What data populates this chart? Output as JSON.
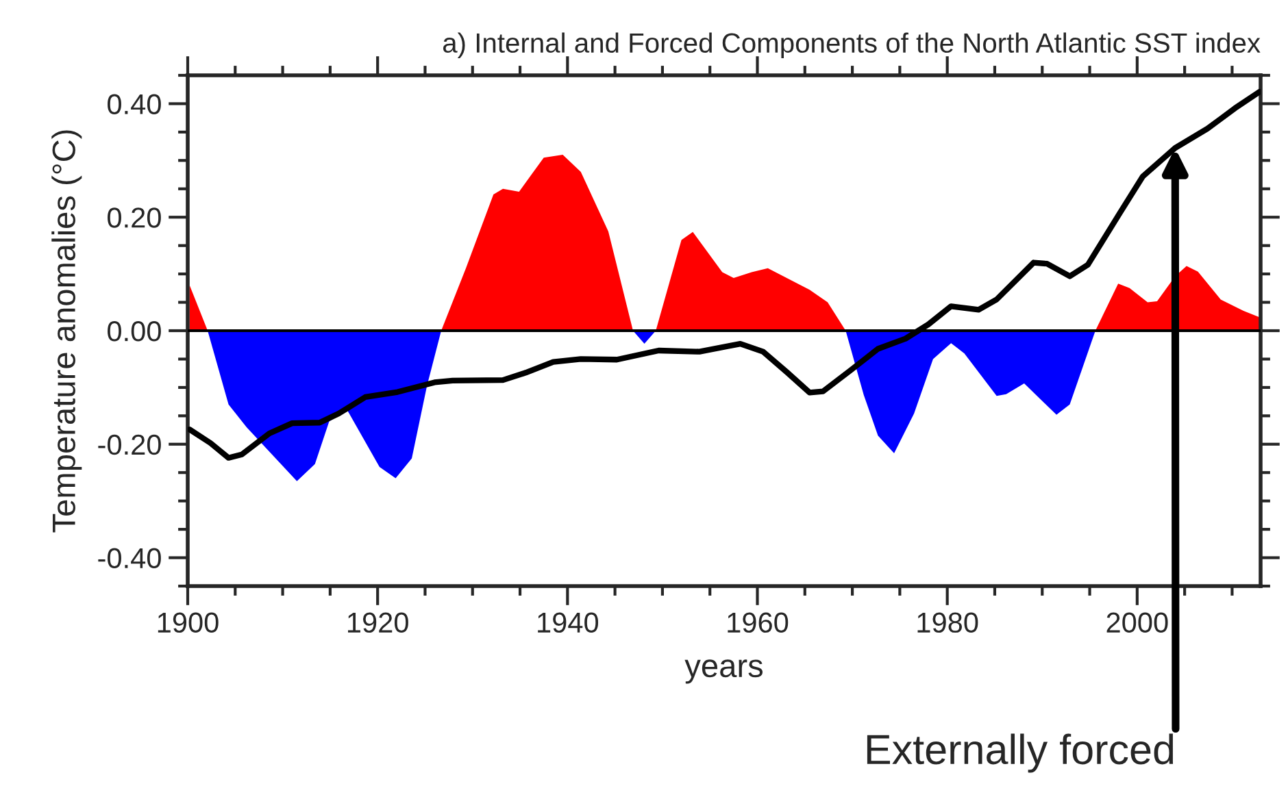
{
  "chart_data": {
    "type": "area",
    "title": "a) Internal and Forced Components of the North Atlantic SST index",
    "xlabel": "years",
    "ylabel": "Temperature anomalies (°C)",
    "xlim": [
      1900,
      2013
    ],
    "xticks": [
      1900,
      1920,
      1940,
      1960,
      1980,
      2000
    ],
    "ylim": [
      -0.45,
      0.45
    ],
    "yticks": [
      {
        "value": -0.4,
        "label": "-0.40"
      },
      {
        "value": -0.2,
        "label": "-0.20"
      },
      {
        "value": 0,
        "label": "0.00"
      },
      {
        "value": 0.2,
        "label": "0.20"
      },
      {
        "value": 0.4,
        "label": "0.40"
      }
    ],
    "grid": false,
    "legend": false,
    "ref_lines": [
      {
        "axis": "y",
        "value": 0,
        "color": "#000000"
      }
    ],
    "annotations": [
      {
        "text": "Externally forced",
        "x": 2004,
        "y": 0.322
      }
    ],
    "series": [
      {
        "color": "#ff0000",
        "x": [
          1900.2,
          1902.1,
          null,
          1926.7,
          1929.3,
          1932.2,
          1933.2,
          1934.9,
          1937.5,
          1939.5,
          1941.4,
          1944.3,
          1946.9,
          null,
          1949.3,
          1952,
          1953.2,
          1956.3,
          1957.5,
          1959.4,
          1961.1,
          1965.5,
          1967.4,
          1969.3,
          null,
          1995.6,
          1998,
          1999.2,
          2001.1,
          2002.1,
          2004,
          2005.2,
          2006.4,
          2008.8,
          2011.2,
          2013
        ],
        "values": [
          0.08,
          0,
          null,
          0,
          0.11,
          0.24,
          0.25,
          0.245,
          0.305,
          0.31,
          0.28,
          0.175,
          0,
          null,
          0,
          0.16,
          0.174,
          0.103,
          0.093,
          0.103,
          0.11,
          0.072,
          0.05,
          0,
          null,
          0,
          0.083,
          0.075,
          0.05,
          0.052,
          0.096,
          0.114,
          0.104,
          0.055,
          0.035,
          0.023
        ]
      },
      {
        "color": "#0000ff",
        "x": [
          1902.1,
          1904.3,
          1906.2,
          1911.5,
          1913.4,
          1914.9,
          1916.8,
          1920.2,
          1921.9,
          1923.6,
          1925.2,
          1926.7,
          null,
          1946.9,
          1948.1,
          1949.3,
          null,
          1969.3,
          1971.2,
          1972.7,
          1974.4,
          1976.5,
          1978.5,
          1980.4,
          1981.8,
          1985.2,
          1986.2,
          1988.1,
          1991.5,
          1992.9,
          1995.6
        ],
        "values": [
          0,
          -0.13,
          -0.17,
          -0.265,
          -0.235,
          -0.16,
          -0.14,
          -0.24,
          -0.26,
          -0.225,
          -0.097,
          0,
          null,
          0,
          -0.023,
          0,
          null,
          0,
          -0.113,
          -0.185,
          -0.216,
          -0.146,
          -0.05,
          -0.022,
          -0.04,
          -0.115,
          -0.112,
          -0.093,
          -0.148,
          -0.13,
          0
        ]
      },
      {
        "type": "line",
        "color": "#000000",
        "x": [
          1900.2,
          1902.4,
          1904.3,
          1905.7,
          1908.6,
          1911,
          1913.9,
          1915.9,
          1918.7,
          1922.1,
          1926,
          1927.9,
          1933.2,
          1935.6,
          1938.5,
          1941.4,
          1945.2,
          1949.6,
          1953.9,
          1958.2,
          1960.6,
          1963.1,
          1965.5,
          1966.9,
          1969.8,
          1972.7,
          1975.6,
          1978,
          1980.4,
          1983.3,
          1985.2,
          1989.1,
          1990.5,
          1992.9,
          1994.8,
          1998.2,
          2000.6,
          2004,
          2007.4,
          2010.3,
          2012.9
        ],
        "values": [
          -0.174,
          -0.198,
          -0.224,
          -0.218,
          -0.181,
          -0.163,
          -0.162,
          -0.146,
          -0.117,
          -0.108,
          -0.091,
          -0.088,
          -0.087,
          -0.074,
          -0.055,
          -0.05,
          -0.051,
          -0.035,
          -0.037,
          -0.023,
          -0.037,
          -0.073,
          -0.109,
          -0.107,
          -0.07,
          -0.032,
          -0.014,
          0.011,
          0.043,
          0.037,
          0.055,
          0.12,
          0.118,
          0.096,
          0.116,
          0.208,
          0.272,
          0.322,
          0.356,
          0.392,
          0.421
        ]
      }
    ]
  }
}
